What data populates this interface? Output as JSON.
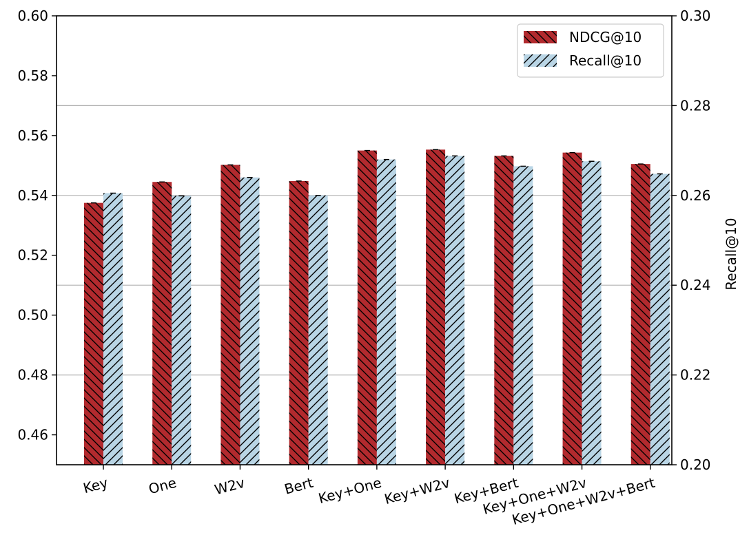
{
  "chart_data": {
    "type": "bar",
    "categories": [
      "Key",
      "One",
      "W2v",
      "Bert",
      "Key+One",
      "Key+W2v",
      "Key+Bert",
      "Key+One+W2v",
      "Key+One+W2v+Bert"
    ],
    "series": [
      {
        "name": "NDCG@10",
        "axis": "left",
        "color": "#b22a2e",
        "hatch": "backslash",
        "values": [
          0.5375,
          0.5445,
          0.5502,
          0.5448,
          0.555,
          0.5553,
          0.5532,
          0.5543,
          0.5505
        ]
      },
      {
        "name": "Recall@10",
        "axis": "right",
        "color": "#b9d5e5",
        "hatch": "slash",
        "values": [
          0.2605,
          0.2599,
          0.264,
          0.26,
          0.268,
          0.2688,
          0.2665,
          0.2676,
          0.2648
        ]
      }
    ],
    "ylim_left": [
      0.45,
      0.6
    ],
    "yticks_left": [
      "0.46",
      "0.48",
      "0.50",
      "0.52",
      "0.54",
      "0.56",
      "0.58",
      "0.60"
    ],
    "ylim_right": [
      0.2,
      0.3
    ],
    "yticks_right": [
      "0.20",
      "0.22",
      "0.24",
      "0.26",
      "0.28",
      "0.30"
    ],
    "ylabel_right": "Recall@10",
    "ylabel_left": "",
    "xlabel": "",
    "grid": "horizontal on right-axis ticks",
    "legend_position": "top-right",
    "xtick_rotation_deg": 15
  }
}
